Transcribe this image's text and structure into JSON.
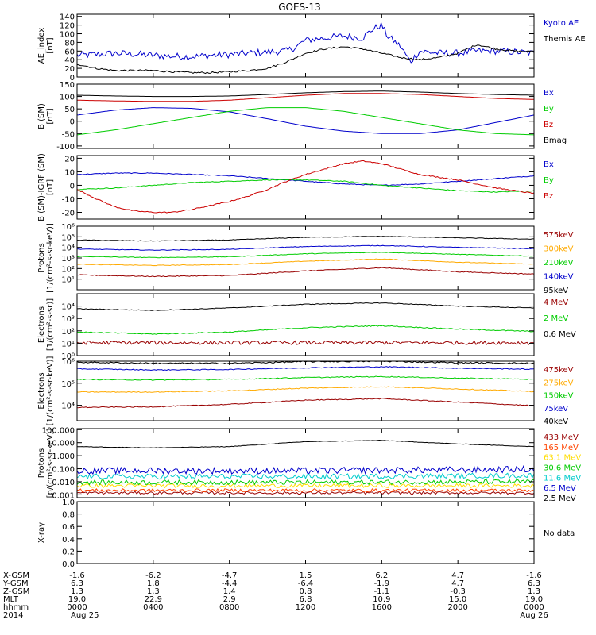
{
  "title": "GOES-13",
  "time_axis": {
    "hours": [
      0,
      4,
      8,
      12,
      16,
      20,
      24
    ]
  },
  "chart_data": [
    {
      "type": "line",
      "id": "ae",
      "ylabel": [
        "AE_index",
        "[nT]"
      ],
      "ylim": [
        0,
        145
      ],
      "yticks": [
        "0",
        "20",
        "40",
        "60",
        "80",
        "100",
        "120",
        "140"
      ],
      "ytick_values": [
        0,
        20,
        40,
        60,
        80,
        100,
        120,
        140
      ],
      "series": [
        {
          "name": "Kyoto AE",
          "color": "#0000cc",
          "noise": 8,
          "x": [
            0,
            1,
            2,
            3,
            4,
            5,
            6,
            7,
            8,
            9,
            10,
            11,
            11.5,
            12,
            13,
            14,
            15,
            15.5,
            16,
            16.3,
            17,
            17.5,
            18,
            19,
            20,
            21,
            22,
            23,
            24
          ],
          "y": [
            50,
            52,
            55,
            53,
            50,
            48,
            47,
            50,
            52,
            55,
            58,
            60,
            70,
            85,
            90,
            95,
            90,
            110,
            120,
            95,
            70,
            35,
            60,
            55,
            55,
            60,
            60,
            58,
            55
          ]
        },
        {
          "name": "Themis AE",
          "color": "#000000",
          "noise": 2,
          "x": [
            0,
            1,
            2,
            3,
            4,
            5,
            6,
            7,
            8,
            9,
            10,
            11,
            12,
            13,
            14,
            15,
            16,
            17,
            18,
            19,
            20,
            21,
            22,
            23,
            24
          ],
          "y": [
            30,
            20,
            15,
            15,
            15,
            12,
            10,
            10,
            12,
            15,
            20,
            35,
            55,
            65,
            70,
            65,
            55,
            45,
            40,
            45,
            55,
            75,
            65,
            60,
            58
          ]
        }
      ]
    },
    {
      "type": "line",
      "id": "bsm",
      "ylabel": [
        "B (SM)",
        "[nT]"
      ],
      "ylim": [
        -110,
        150
      ],
      "yticks": [
        "-100",
        "-50",
        "0",
        "50",
        "100",
        "150"
      ],
      "ytick_values": [
        -100,
        -50,
        0,
        50,
        100,
        150
      ],
      "series": [
        {
          "name": "Bx",
          "color": "#0000cc",
          "noise": 0,
          "x": [
            0,
            2,
            4,
            6,
            8,
            10,
            12,
            14,
            16,
            18,
            20,
            22,
            24
          ],
          "y": [
            25,
            45,
            55,
            52,
            38,
            10,
            -20,
            -40,
            -50,
            -50,
            -35,
            -5,
            25
          ]
        },
        {
          "name": "By",
          "color": "#00cc00",
          "noise": 0,
          "x": [
            0,
            2,
            4,
            6,
            8,
            10,
            12,
            14,
            16,
            18,
            20,
            22,
            24
          ],
          "y": [
            -55,
            -35,
            -10,
            15,
            40,
            55,
            55,
            40,
            15,
            -10,
            -35,
            -50,
            -55
          ]
        },
        {
          "name": "Bz",
          "color": "#cc0000",
          "noise": 0,
          "x": [
            0,
            2,
            4,
            6,
            8,
            10,
            12,
            14,
            16,
            18,
            20,
            22,
            24
          ],
          "y": [
            85,
            82,
            80,
            80,
            85,
            95,
            105,
            112,
            112,
            108,
            100,
            92,
            88
          ]
        },
        {
          "name": "Bmag",
          "color": "#000000",
          "noise": 0,
          "x": [
            0,
            2,
            4,
            6,
            8,
            10,
            12,
            14,
            16,
            18,
            20,
            22,
            24
          ],
          "y": [
            105,
            102,
            100,
            100,
            102,
            108,
            115,
            120,
            122,
            118,
            112,
            108,
            105
          ]
        }
      ]
    },
    {
      "type": "line",
      "id": "bdiff",
      "ylabel": [
        "B (SM)-IGRF (SM)",
        "[nT]"
      ],
      "ylim": [
        -25,
        22
      ],
      "yticks": [
        "-20",
        "-10",
        "0",
        "10",
        "20"
      ],
      "ytick_values": [
        -20,
        -10,
        0,
        10,
        20
      ],
      "series": [
        {
          "name": "Bx",
          "color": "#0000cc",
          "noise": 0.3,
          "x": [
            0,
            2,
            4,
            6,
            8,
            10,
            12,
            14,
            16,
            18,
            20,
            22,
            24
          ],
          "y": [
            8,
            9,
            9,
            8,
            7,
            5,
            3,
            1,
            0,
            1,
            3,
            5,
            7
          ]
        },
        {
          "name": "By",
          "color": "#00cc00",
          "noise": 0.3,
          "x": [
            0,
            2,
            4,
            6,
            8,
            10,
            12,
            14,
            16,
            18,
            20,
            22,
            24
          ],
          "y": [
            -3,
            -2,
            0,
            2,
            3,
            4,
            4,
            3,
            0,
            -2,
            -4,
            -5,
            -4
          ]
        },
        {
          "name": "Bz",
          "color": "#cc0000",
          "noise": 0.4,
          "x": [
            0,
            1,
            2,
            3,
            4,
            5,
            6,
            7,
            8,
            9,
            10,
            11,
            12,
            13,
            14,
            15,
            16,
            17,
            18,
            19,
            20,
            21,
            22,
            23,
            24
          ],
          "y": [
            -3,
            -10,
            -16,
            -19,
            -20,
            -20,
            -18,
            -15,
            -12,
            -8,
            -3,
            3,
            8,
            12,
            16,
            18,
            16,
            12,
            8,
            6,
            4,
            1,
            -2,
            -4,
            -6
          ]
        }
      ]
    },
    {
      "type": "line",
      "id": "protons-mev-low",
      "log": true,
      "ylabel": [
        "Protons",
        "[1/(cm²-s-sr-keV)]"
      ],
      "ylim": [
        1,
        1000000
      ],
      "yticks": [
        "10¹",
        "10²",
        "10³",
        "10⁴",
        "10⁵",
        "10⁶"
      ],
      "ytick_values": [
        10,
        100,
        1000,
        10000,
        100000,
        1000000
      ],
      "series": [
        {
          "name": "575keV",
          "color": "#990000",
          "noise": 0.04,
          "x": [
            0,
            4,
            8,
            12,
            16,
            20,
            24
          ],
          "y": [
            25,
            18,
            22,
            60,
            120,
            50,
            30
          ]
        },
        {
          "name": "300keV",
          "color": "#ffaa00",
          "noise": 0.03,
          "x": [
            0,
            4,
            8,
            12,
            16,
            20,
            24
          ],
          "y": [
            260,
            200,
            240,
            500,
            800,
            400,
            260
          ]
        },
        {
          "name": "210keV",
          "color": "#00cc00",
          "noise": 0.03,
          "x": [
            0,
            4,
            8,
            12,
            16,
            20,
            24
          ],
          "y": [
            1400,
            1100,
            1300,
            2500,
            3500,
            2200,
            1500
          ]
        },
        {
          "name": "140keV",
          "color": "#0000cc",
          "noise": 0.03,
          "x": [
            0,
            4,
            8,
            12,
            16,
            20,
            24
          ],
          "y": [
            7000,
            5500,
            6500,
            12000,
            15000,
            10000,
            7500
          ]
        },
        {
          "name": "95keV",
          "color": "#000000",
          "noise": 0.03,
          "x": [
            0,
            4,
            8,
            12,
            16,
            20,
            24
          ],
          "y": [
            50000,
            40000,
            50000,
            90000,
            110000,
            80000,
            60000
          ]
        }
      ]
    },
    {
      "type": "line",
      "id": "electrons-mev",
      "log": true,
      "ylabel": [
        "Electrons",
        "[1/(cm²-s-sr)]"
      ],
      "ylim": [
        1,
        100000
      ],
      "yticks": [
        "10⁰",
        "10¹",
        "10²",
        "10³",
        "10⁴"
      ],
      "ytick_values": [
        1,
        10,
        100,
        1000,
        10000
      ],
      "series": [
        {
          "name": "4 MeV",
          "color": "#990000",
          "noise": 0.15,
          "x": [
            0,
            12,
            24
          ],
          "y": [
            11,
            11,
            11
          ]
        },
        {
          "name": "2 MeV",
          "color": "#00cc00",
          "noise": 0.04,
          "x": [
            0,
            4,
            8,
            12,
            16,
            20,
            24
          ],
          "y": [
            80,
            55,
            80,
            180,
            260,
            140,
            90
          ]
        },
        {
          "name": "0.6 MeV",
          "color": "#000000",
          "noise": 0.03,
          "x": [
            0,
            4,
            8,
            12,
            16,
            20,
            24
          ],
          "y": [
            6000,
            4500,
            7000,
            14000,
            18000,
            10000,
            7000
          ]
        }
      ]
    },
    {
      "type": "line",
      "id": "electrons-kev",
      "log": true,
      "ylabel": [
        "Electrons",
        "[1/(cm²-s-sr-keV)]"
      ],
      "ylim": [
        2000,
        1000000
      ],
      "yticks": [
        "10⁴",
        "10⁵",
        "10⁶"
      ],
      "ytick_values": [
        10000,
        100000,
        1000000
      ],
      "series": [
        {
          "name": "475keV",
          "color": "#990000",
          "noise": 0.02,
          "x": [
            0,
            4,
            8,
            12,
            16,
            20,
            24
          ],
          "y": [
            8000,
            8500,
            11000,
            17000,
            20000,
            14000,
            9500
          ]
        },
        {
          "name": "275keV",
          "color": "#ffaa00",
          "noise": 0.02,
          "x": [
            0,
            4,
            8,
            12,
            16,
            20,
            24
          ],
          "y": [
            40000,
            40000,
            45000,
            60000,
            70000,
            55000,
            42000
          ]
        },
        {
          "name": "150keV",
          "color": "#00cc00",
          "noise": 0.02,
          "x": [
            0,
            4,
            8,
            12,
            16,
            20,
            24
          ],
          "y": [
            150000,
            140000,
            150000,
            180000,
            200000,
            170000,
            150000
          ]
        },
        {
          "name": "75keV",
          "color": "#0000cc",
          "noise": 0.02,
          "x": [
            0,
            4,
            8,
            12,
            16,
            20,
            24
          ],
          "y": [
            450000,
            400000,
            420000,
            500000,
            560000,
            480000,
            430000
          ]
        },
        {
          "name": "40keV",
          "color": "#000000",
          "noise": 0.03,
          "x": [
            0,
            4,
            8,
            12,
            16,
            20,
            24
          ],
          "y": [
            900000,
            800000,
            800000,
            950000,
            1000000,
            850000,
            800000
          ]
        }
      ]
    },
    {
      "type": "line",
      "id": "protons-high",
      "log": true,
      "ylabel": [
        "Protons",
        "[p/(cm²-s-sr-keV)]"
      ],
      "ylim": [
        0.0006,
        120
      ],
      "yticks": [
        "0.001",
        "0.010",
        "0.100",
        "1.000",
        "10.000",
        "100.000"
      ],
      "ytick_values": [
        0.001,
        0.01,
        0.1,
        1,
        10,
        100
      ],
      "series": [
        {
          "name": "433 MeV",
          "color": "#990000",
          "noise": 0.1,
          "x": [
            0,
            12,
            24
          ],
          "y": [
            0.0014,
            0.0014,
            0.0014
          ]
        },
        {
          "name": "165 MeV",
          "color": "#ff4400",
          "noise": 0.12,
          "x": [
            0,
            12,
            24
          ],
          "y": [
            0.0022,
            0.0022,
            0.0022
          ]
        },
        {
          "name": "63.1 MeV",
          "color": "#ffdd00",
          "noise": 0.15,
          "x": [
            0,
            12,
            24
          ],
          "y": [
            0.005,
            0.005,
            0.005
          ]
        },
        {
          "name": "30.6 MeV",
          "color": "#00cc00",
          "noise": 0.18,
          "x": [
            0,
            12,
            24
          ],
          "y": [
            0.009,
            0.009,
            0.01
          ]
        },
        {
          "name": "11.6 MeV",
          "color": "#00cccc",
          "noise": 0.2,
          "x": [
            0,
            12,
            24
          ],
          "y": [
            0.025,
            0.025,
            0.03
          ]
        },
        {
          "name": "6.5 MeV",
          "color": "#0000cc",
          "noise": 0.25,
          "x": [
            0,
            12,
            24
          ],
          "y": [
            0.07,
            0.07,
            0.09
          ]
        },
        {
          "name": "2.5 MeV",
          "color": "#000000",
          "noise": 0.02,
          "x": [
            0,
            4,
            8,
            12,
            16,
            20,
            24
          ],
          "y": [
            5,
            4,
            5,
            12,
            15,
            8,
            5
          ]
        }
      ]
    },
    {
      "type": "line",
      "id": "xray",
      "ylabel": [
        "X-ray",
        ""
      ],
      "ylim": [
        0,
        1
      ],
      "yticks": [
        "0.0",
        "0.2",
        "0.4",
        "0.6",
        "0.8",
        "1.0"
      ],
      "ytick_values": [
        0,
        0.2,
        0.4,
        0.6,
        0.8,
        1.0
      ],
      "note": "No data",
      "series": []
    }
  ],
  "footer": {
    "row_labels": [
      "X-GSM",
      "Y-GSM",
      "Z-GSM",
      "MLT",
      "hhmm",
      "2014"
    ],
    "columns": [
      [
        "-1.6",
        "6.3",
        "1.3",
        "19.0",
        "0000",
        "Aug 25"
      ],
      [
        "-6.2",
        "1.8",
        "1.3",
        "22.9",
        "0400",
        ""
      ],
      [
        "-4.7",
        "-4.4",
        "1.4",
        "2.9",
        "0800",
        ""
      ],
      [
        "1.5",
        "-6.4",
        "0.8",
        "6.8",
        "1200",
        ""
      ],
      [
        "6.2",
        "-1.9",
        "-1.1",
        "10.9",
        "1600",
        ""
      ],
      [
        "4.7",
        "4.7",
        "-0.3",
        "15.0",
        "2000",
        ""
      ],
      [
        "-1.6",
        "6.3",
        "1.3",
        "19.0",
        "0000",
        "Aug 26"
      ]
    ]
  }
}
